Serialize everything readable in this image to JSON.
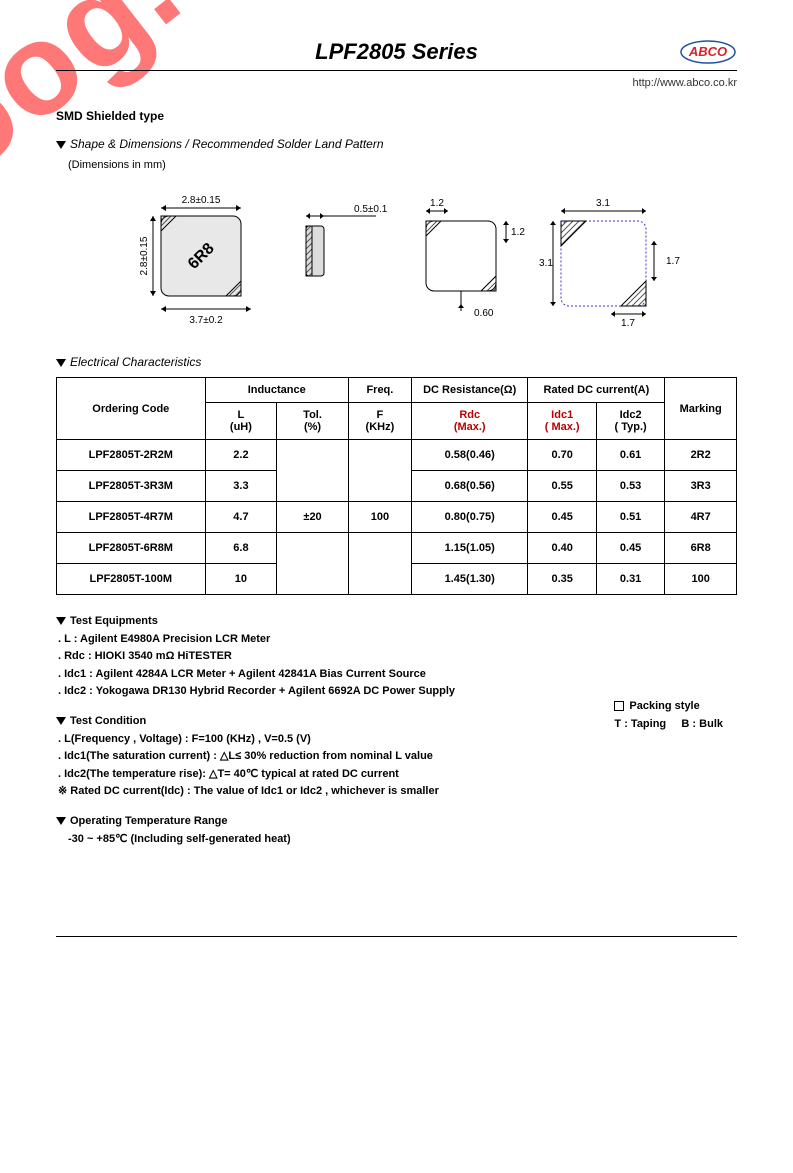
{
  "header": {
    "title": "LPF2805 Series",
    "logo_text": "ABCO",
    "url": "http://www.abco.co.kr"
  },
  "subtitle": "SMD Shielded type",
  "section1": {
    "title": "Shape & Dimensions / Recommended Solder Land Pattern",
    "note": "(Dimensions in mm)"
  },
  "dims": {
    "top_width": "2.8±0.15",
    "side_height": "2.8±0.15",
    "diag": "3.7±0.2",
    "chip_mark": "6R8",
    "thick": "0.5±0.1",
    "pad_w1": "1.2",
    "pad_h1": "1.2",
    "pad_gap": "0.60",
    "land_w": "3.1",
    "land_h": "3.1",
    "land_c1": "1.7",
    "land_c2": "1.7"
  },
  "section2": {
    "title": "Electrical Characteristics"
  },
  "table": {
    "h_order": "Ordering   Code",
    "h_ind": "Inductance",
    "h_freq": "Freq.",
    "h_dcr": "DC Resistance(Ω)",
    "h_rated": "Rated  DC current(A)",
    "h_mark": "Marking",
    "sub_l": "L\n(uH)",
    "sub_tol": "Tol.\n(%)",
    "sub_f": "F\n(KHz)",
    "sub_rdc": "Rdc\n(Max.)",
    "sub_idc1": "Idc1\n( Max.)",
    "sub_idc2": "Idc2\n( Typ.)",
    "common": {
      "tol": "±20",
      "freq": "100"
    },
    "rows": [
      {
        "code": "LPF2805T-2R2M",
        "l": "2.2",
        "rdc": "0.58(0.46)",
        "idc1": "0.70",
        "idc2": "0.61",
        "mark": "2R2"
      },
      {
        "code": "LPF2805T-3R3M",
        "l": "3.3",
        "rdc": "0.68(0.56)",
        "idc1": "0.55",
        "idc2": "0.53",
        "mark": "3R3"
      },
      {
        "code": "LPF2805T-4R7M",
        "l": "4.7",
        "rdc": "0.80(0.75)",
        "idc1": "0.45",
        "idc2": "0.51",
        "mark": "4R7"
      },
      {
        "code": "LPF2805T-6R8M",
        "l": "6.8",
        "rdc": "1.15(1.05)",
        "idc1": "0.40",
        "idc2": "0.45",
        "mark": "6R8"
      },
      {
        "code": "LPF2805T-100M",
        "l": "10",
        "rdc": "1.45(1.30)",
        "idc1": "0.35",
        "idc2": "0.31",
        "mark": "100"
      }
    ]
  },
  "notes": {
    "eq_title": "Test Equipments",
    "eq": [
      ". L : Agilent E4980A Precision LCR Meter",
      ". Rdc : HIOKI 3540 mΩ HiTESTER",
      ". Idc1 : Agilent 4284A LCR Meter + Agilent 42841A Bias Current Source",
      ". Idc2 : Yokogawa DR130 Hybrid Recorder + Agilent 6692A DC Power Supply"
    ],
    "cond_title": "Test Condition",
    "cond": [
      ". L(Frequency , Voltage) : F=100 (KHz) , V=0.5 (V)",
      ". Idc1(The saturation current) : △L≤ 30% reduction from nominal L value",
      ". Idc2(The temperature rise): △T= 40℃ typical at rated DC current",
      "※ Rated DC current(Idc) : The value of Idc1 or Idc2 , whichever is smaller"
    ],
    "temp_title": "Operating Temperature Range",
    "temp": "-30 ~ +85℃ (Including self-generated heat)"
  },
  "packing": {
    "title": "Packing style",
    "opts": "T : Taping     B : Bulk"
  },
  "watermark": {
    "text": "isee.sisoog.com",
    "color": "#ff0a0a",
    "fontsize": 130,
    "angle": -38
  },
  "colors": {
    "border": "#000000",
    "bg": "#ffffff",
    "link": "#333333",
    "logo_red": "#d4232a",
    "logo_blue": "#2050a0"
  }
}
